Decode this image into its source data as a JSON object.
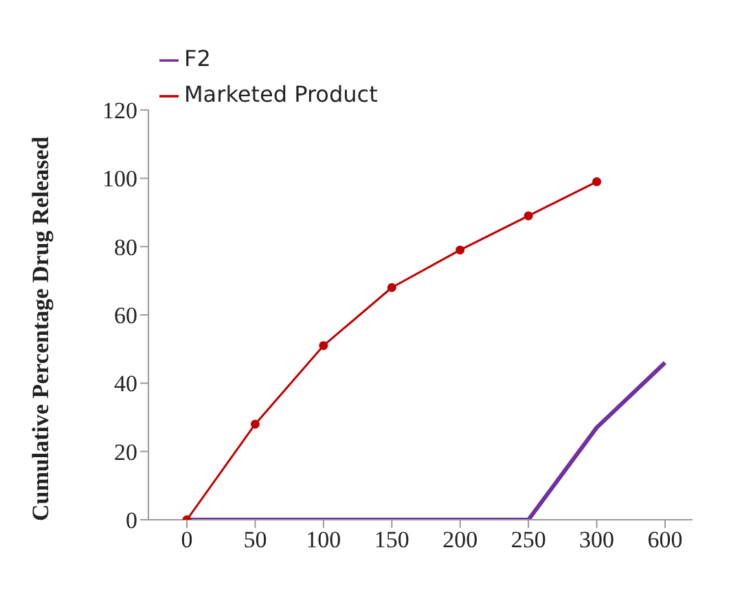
{
  "chart_data": {
    "type": "line",
    "ylabel": "Cumulative Percentage Drug Released",
    "categories": [
      "0",
      "50",
      "100",
      "150",
      "200",
      "250",
      "300",
      "600"
    ],
    "series": [
      {
        "name": "F2",
        "color": "#7030a0",
        "values": [
          0,
          0,
          0,
          0,
          0,
          0,
          27,
          46
        ],
        "marker": "none"
      },
      {
        "name": "Marketed Product",
        "color": "#c00000",
        "values": [
          0,
          28,
          51,
          68,
          79,
          89,
          99,
          null
        ],
        "marker": "circle"
      }
    ],
    "ylim": [
      0,
      120
    ],
    "yticks": [
      0,
      20,
      40,
      60,
      80,
      100,
      120
    ],
    "grid": false,
    "legend": "top left"
  }
}
